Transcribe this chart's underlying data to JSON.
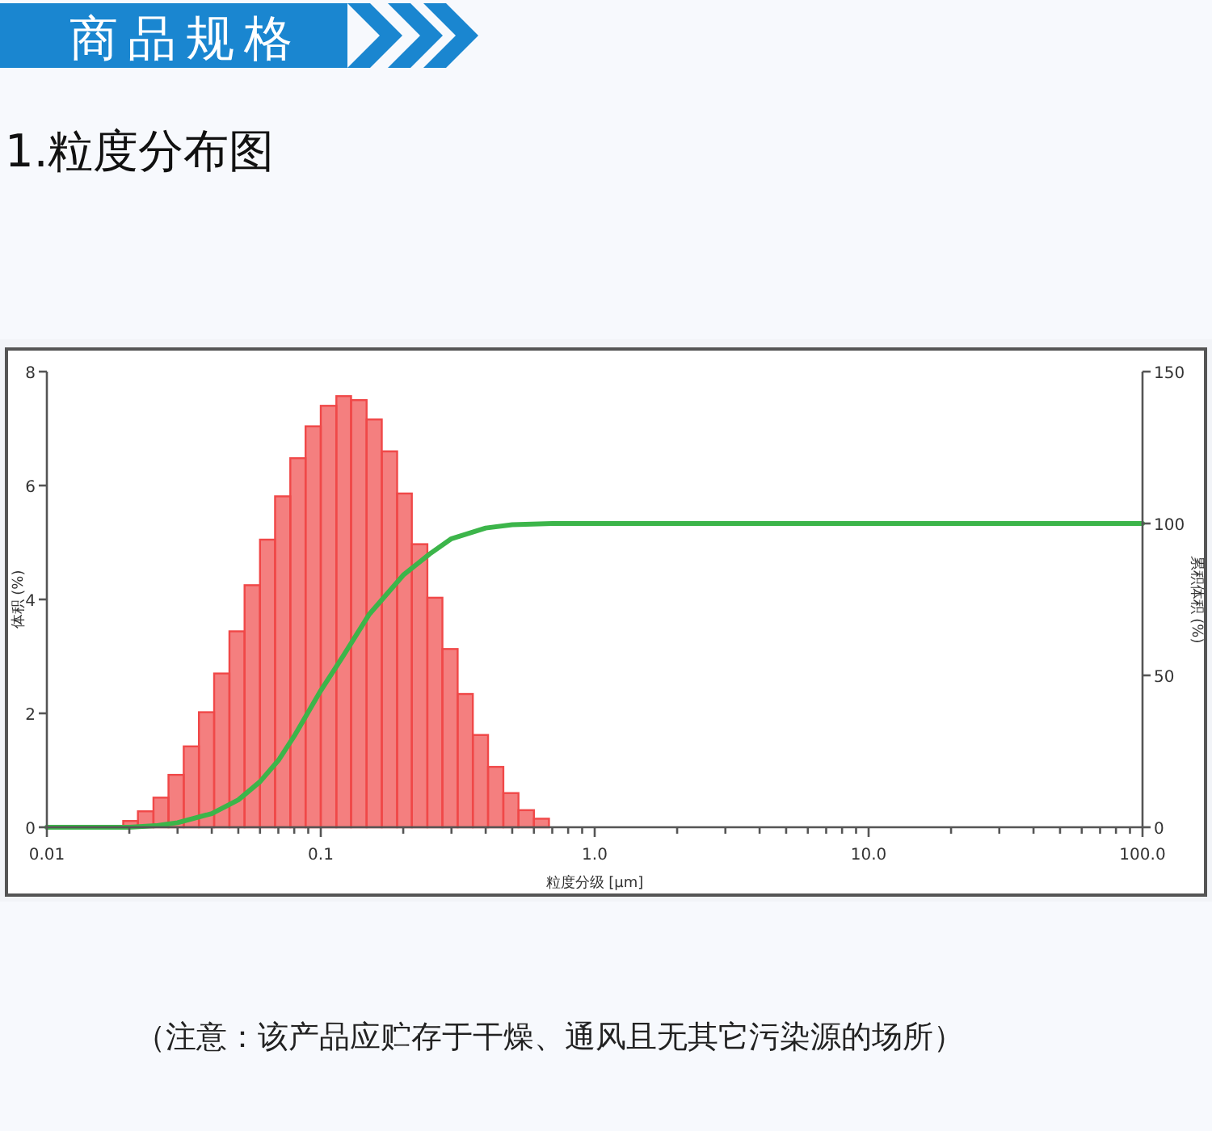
{
  "chart_data": {
    "type": "histogram",
    "title": "商品规格",
    "subtitle": "1.粒度分布图",
    "xlabel": "粒度分级 [μm]",
    "ylabel": "体积 (%)",
    "y2label": "累积体积 (%)",
    "annotations": [
      "（注意：该产品应贮存于干燥、通风且无其它污染源的场所）"
    ],
    "log": "x",
    "xlim": [
      0.01,
      100
    ],
    "xticks": [
      {
        "value": 0.01,
        "label": "0.01"
      },
      {
        "value": 0.1,
        "label": "0.1"
      },
      {
        "value": 1,
        "label": "1.0"
      },
      {
        "value": 10,
        "label": "10.0"
      },
      {
        "value": 100,
        "label": "100.0"
      }
    ],
    "ylim": [
      0,
      8
    ],
    "yticks": [
      0,
      2,
      4,
      6,
      8
    ],
    "y2lim": [
      0,
      150
    ],
    "y2ticks": [
      0,
      50,
      100,
      150
    ],
    "grid": false,
    "series": [
      {
        "color": "#f04848",
        "bins": [
          0.019,
          0.0215,
          0.0245,
          0.0278,
          0.0316,
          0.0359,
          0.0408,
          0.0464,
          0.0527,
          0.06,
          0.0681,
          0.0774,
          0.088,
          0.1,
          0.114,
          0.129,
          0.147,
          0.167,
          0.19,
          0.215,
          0.245,
          0.278,
          0.316,
          0.359,
          0.408,
          0.464,
          0.527,
          0.6,
          0.681
        ],
        "values": [
          0.11,
          0.28,
          0.52,
          0.92,
          1.42,
          2.02,
          2.7,
          3.44,
          4.25,
          5.05,
          5.81,
          6.48,
          7.04,
          7.4,
          7.57,
          7.5,
          7.16,
          6.6,
          5.86,
          4.97,
          4.03,
          3.13,
          2.34,
          1.62,
          1.06,
          0.6,
          0.3,
          0.15
        ]
      },
      {
        "type": "line",
        "axis": "y2",
        "color": "#3cb54a",
        "x": [
          0.01,
          0.02,
          0.025,
          0.03,
          0.04,
          0.05,
          0.06,
          0.07,
          0.08,
          0.1,
          0.12,
          0.15,
          0.2,
          0.25,
          0.3,
          0.4,
          0.5,
          0.7,
          1,
          10,
          100
        ],
        "values": [
          0,
          0,
          0.5,
          1.5,
          4.5,
          9,
          15,
          22,
          30,
          45,
          56,
          70,
          83,
          90,
          95,
          98.5,
          99.6,
          100,
          100,
          100,
          100
        ]
      }
    ]
  }
}
